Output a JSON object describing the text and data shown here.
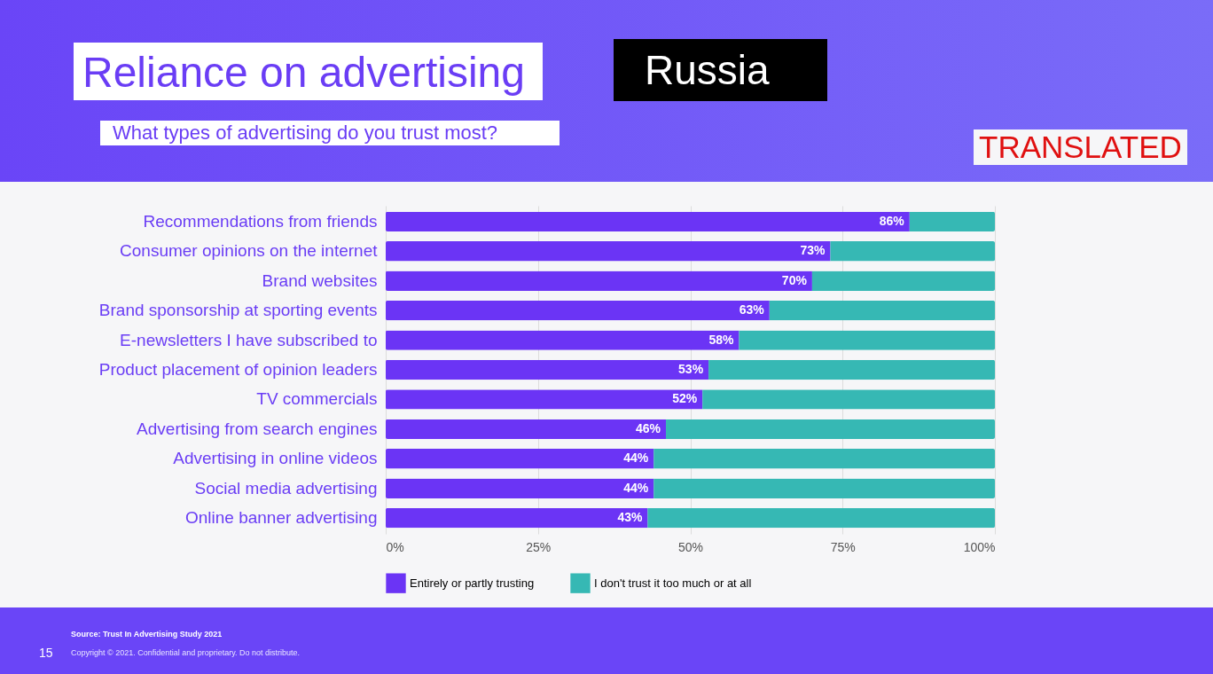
{
  "chart_data": {
    "type": "bar",
    "orientation": "horizontal",
    "stacked": true,
    "title": "Reliance on advertising",
    "subtitle": "What types of advertising do you trust most?",
    "categories": [
      "Recommendations from friends",
      "Consumer opinions on the internet",
      "Brand websites",
      "Brand sponsorship at sporting events",
      "E-newsletters I have subscribed to",
      "Product placement of opinion leaders",
      "TV commercials",
      "Advertising from search engines",
      "Advertising in online videos",
      "Social media advertising",
      "Online banner advertising"
    ],
    "series": [
      {
        "name": "Entirely or partly trusting",
        "color": "#6b34f5",
        "values": [
          86,
          73,
          70,
          63,
          58,
          53,
          52,
          46,
          44,
          44,
          43
        ],
        "value_labels": [
          "86%",
          "73%",
          "70%",
          "63%",
          "58%",
          "53%",
          "52%",
          "46%",
          "44%",
          "44%",
          "43%"
        ]
      },
      {
        "name": "I don't trust it too much or at all",
        "color": "#36b8b4",
        "values": [
          14,
          27,
          30,
          37,
          42,
          47,
          48,
          54,
          56,
          56,
          57
        ]
      }
    ],
    "xlim": [
      0,
      100
    ],
    "xticks": [
      {
        "value": 0,
        "label": "0%"
      },
      {
        "value": 25,
        "label": "25%"
      },
      {
        "value": 50,
        "label": "50%"
      },
      {
        "value": 75,
        "label": "75%"
      },
      {
        "value": 100,
        "label": "100%"
      }
    ],
    "grid": "x",
    "legend": "bottom",
    "annotations": [
      "Russia",
      "TRANSLATED",
      "Source: Trust In Advertising Study 2021",
      "Copyright © 2021. Confidential and proprietary. Do not distribute.",
      "15"
    ]
  }
}
